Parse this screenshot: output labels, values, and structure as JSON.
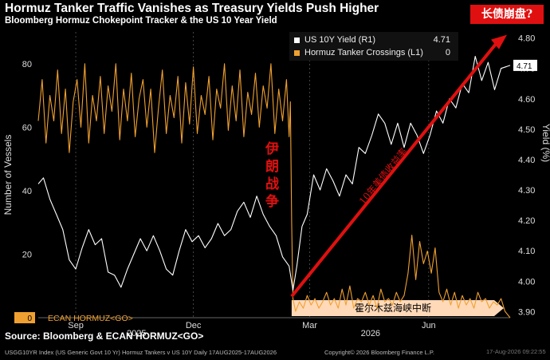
{
  "header": {
    "title": "Hormuz Tanker Traffic Vanishes as Treasury Yields Push Higher",
    "subtitle": "Bloomberg Hormuz Chokepoint Tracker & the US 10 Year Yield",
    "badge": "长债崩盘?"
  },
  "legend": {
    "items": [
      {
        "label": "US 10Y Yield (R1)",
        "value": "4.71"
      },
      {
        "label": "Hormuz Tanker Crossings (L1)",
        "value": "0"
      }
    ]
  },
  "annotations": {
    "war": [
      "伊",
      "朗",
      "战",
      "争"
    ],
    "arrow_text": "10年美债收益率",
    "strait_text": "霍尔木兹海峡中断",
    "ecan": "ECAN HORMUZ<GO>",
    "left_last": "0",
    "right_last": "4.71"
  },
  "footer": {
    "source": "Source: Bloomberg & ECAN HORMUZ<GO>",
    "small": "USGG10YR Index (US Generic Govt 10 Yr) Hormuz Tankers v US 10Y Daily 17AUG2025-17AUG2026",
    "copyright": "Copyright© 2026 Bloomberg Finance L.P.",
    "stamp": "17-Aug-2026 09:22:55"
  },
  "colors": {
    "yield": "#ffffff",
    "tankers": "#f0a030",
    "annotation_red": "#e01010",
    "strait_band": "#ffd9b8",
    "badge_bg": "#e01010"
  },
  "chart_data": {
    "type": "line",
    "x_range": [
      "2025-08-17",
      "2026-08-17"
    ],
    "x_tick_labels": [
      {
        "label": "Sep",
        "date": "2025-09-15"
      },
      {
        "label": "Dec",
        "date": "2025-12-15"
      },
      {
        "label": "Mar",
        "date": "2026-03-15"
      },
      {
        "label": "Jun",
        "date": "2026-06-15"
      }
    ],
    "year_labels": [
      {
        "label": "2025",
        "date": "2025-11-01"
      },
      {
        "label": "2026",
        "date": "2026-05-01"
      }
    ],
    "left_axis": {
      "label": "Number of Vessels",
      "range": [
        0,
        90
      ],
      "ticks": [
        0,
        20,
        40,
        60,
        80
      ]
    },
    "right_axis": {
      "label": "Yield (%)",
      "range": [
        3.88,
        4.82
      ],
      "ticks": [
        3.9,
        4.0,
        4.1,
        4.2,
        4.3,
        4.4,
        4.5,
        4.6,
        4.7,
        4.8
      ]
    },
    "legend_position": "top-right",
    "grid": "vertical dashed",
    "series": [
      {
        "name": "Hormuz Tanker Crossings (L1)",
        "axis": "left",
        "color": "#f0a030",
        "points": [
          [
            "2025-08-17",
            62
          ],
          [
            "2025-08-20",
            75
          ],
          [
            "2025-08-23",
            55
          ],
          [
            "2025-08-26",
            70
          ],
          [
            "2025-08-29",
            62
          ],
          [
            "2025-09-01",
            78
          ],
          [
            "2025-09-04",
            58
          ],
          [
            "2025-09-07",
            72
          ],
          [
            "2025-09-10",
            52
          ],
          [
            "2025-09-13",
            68
          ],
          [
            "2025-09-16",
            75
          ],
          [
            "2025-09-19",
            60
          ],
          [
            "2025-09-22",
            80
          ],
          [
            "2025-09-25",
            55
          ],
          [
            "2025-09-28",
            70
          ],
          [
            "2025-10-01",
            62
          ],
          [
            "2025-10-04",
            76
          ],
          [
            "2025-10-07",
            58
          ],
          [
            "2025-10-10",
            73
          ],
          [
            "2025-10-13",
            65
          ],
          [
            "2025-10-16",
            80
          ],
          [
            "2025-10-19",
            56
          ],
          [
            "2025-10-22",
            72
          ],
          [
            "2025-10-25",
            62
          ],
          [
            "2025-10-28",
            77
          ],
          [
            "2025-10-31",
            57
          ],
          [
            "2025-11-03",
            69
          ],
          [
            "2025-11-06",
            75
          ],
          [
            "2025-11-09",
            60
          ],
          [
            "2025-11-12",
            72
          ],
          [
            "2025-11-15",
            52
          ],
          [
            "2025-11-18",
            66
          ],
          [
            "2025-11-21",
            78
          ],
          [
            "2025-11-24",
            58
          ],
          [
            "2025-11-27",
            70
          ],
          [
            "2025-11-30",
            63
          ],
          [
            "2025-12-03",
            76
          ],
          [
            "2025-12-06",
            55
          ],
          [
            "2025-12-09",
            74
          ],
          [
            "2025-12-12",
            61
          ],
          [
            "2025-12-15",
            79
          ],
          [
            "2025-12-18",
            58
          ],
          [
            "2025-12-21",
            70
          ],
          [
            "2025-12-24",
            64
          ],
          [
            "2025-12-27",
            76
          ],
          [
            "2025-12-30",
            56
          ],
          [
            "2026-01-02",
            72
          ],
          [
            "2026-01-05",
            66
          ],
          [
            "2026-01-08",
            80
          ],
          [
            "2026-01-11",
            59
          ],
          [
            "2026-01-14",
            73
          ],
          [
            "2026-01-17",
            62
          ],
          [
            "2026-01-20",
            78
          ],
          [
            "2026-01-23",
            57
          ],
          [
            "2026-01-26",
            71
          ],
          [
            "2026-01-29",
            64
          ],
          [
            "2026-02-01",
            77
          ],
          [
            "2026-02-04",
            60
          ],
          [
            "2026-02-07",
            73
          ],
          [
            "2026-02-10",
            66
          ],
          [
            "2026-02-13",
            80
          ],
          [
            "2026-02-16",
            58
          ],
          [
            "2026-02-19",
            72
          ],
          [
            "2026-02-22",
            62
          ],
          [
            "2026-02-25",
            75
          ],
          [
            "2026-02-27",
            57
          ],
          [
            "2026-02-28",
            68
          ],
          [
            "2026-03-01",
            30
          ],
          [
            "2026-03-02",
            6
          ],
          [
            "2026-03-04",
            2
          ],
          [
            "2026-03-07",
            5
          ],
          [
            "2026-03-10",
            3
          ],
          [
            "2026-03-13",
            7
          ],
          [
            "2026-03-16",
            4
          ],
          [
            "2026-03-19",
            6
          ],
          [
            "2026-03-22",
            3
          ],
          [
            "2026-03-25",
            5
          ],
          [
            "2026-03-28",
            8
          ],
          [
            "2026-03-31",
            4
          ],
          [
            "2026-04-03",
            6
          ],
          [
            "2026-04-06",
            3
          ],
          [
            "2026-04-09",
            9
          ],
          [
            "2026-04-12",
            4
          ],
          [
            "2026-04-15",
            10
          ],
          [
            "2026-04-18",
            3
          ],
          [
            "2026-04-21",
            6
          ],
          [
            "2026-04-24",
            5
          ],
          [
            "2026-04-27",
            8
          ],
          [
            "2026-04-30",
            4
          ],
          [
            "2026-05-03",
            7
          ],
          [
            "2026-05-06",
            3
          ],
          [
            "2026-05-09",
            9
          ],
          [
            "2026-05-12",
            5
          ],
          [
            "2026-05-15",
            6
          ],
          [
            "2026-05-18",
            4
          ],
          [
            "2026-05-21",
            8
          ],
          [
            "2026-05-24",
            5
          ],
          [
            "2026-05-27",
            7
          ],
          [
            "2026-05-30",
            14
          ],
          [
            "2026-06-02",
            26
          ],
          [
            "2026-06-05",
            12
          ],
          [
            "2026-06-08",
            24
          ],
          [
            "2026-06-11",
            17
          ],
          [
            "2026-06-14",
            21
          ],
          [
            "2026-06-17",
            14
          ],
          [
            "2026-06-20",
            22
          ],
          [
            "2026-06-23",
            8
          ],
          [
            "2026-06-26",
            5
          ],
          [
            "2026-06-29",
            9
          ],
          [
            "2026-07-02",
            4
          ],
          [
            "2026-07-05",
            8
          ],
          [
            "2026-07-08",
            3
          ],
          [
            "2026-07-11",
            7
          ],
          [
            "2026-07-14",
            4
          ],
          [
            "2026-07-17",
            6
          ],
          [
            "2026-07-20",
            3
          ],
          [
            "2026-07-23",
            8
          ],
          [
            "2026-07-26",
            5
          ],
          [
            "2026-07-29",
            6
          ],
          [
            "2026-08-01",
            3
          ],
          [
            "2026-08-04",
            5
          ],
          [
            "2026-08-07",
            4
          ],
          [
            "2026-08-10",
            6
          ],
          [
            "2026-08-13",
            2
          ],
          [
            "2026-08-17",
            0
          ]
        ]
      },
      {
        "name": "US 10Y Yield (R1)",
        "axis": "right",
        "color": "#ffffff",
        "points": [
          [
            "2025-08-17",
            4.32
          ],
          [
            "2025-08-21",
            4.34
          ],
          [
            "2025-08-26",
            4.27
          ],
          [
            "2025-08-31",
            4.22
          ],
          [
            "2025-09-05",
            4.17
          ],
          [
            "2025-09-10",
            4.07
          ],
          [
            "2025-09-15",
            4.04
          ],
          [
            "2025-09-20",
            4.11
          ],
          [
            "2025-09-25",
            4.17
          ],
          [
            "2025-09-30",
            4.12
          ],
          [
            "2025-10-05",
            4.14
          ],
          [
            "2025-10-10",
            4.03
          ],
          [
            "2025-10-15",
            4.02
          ],
          [
            "2025-10-20",
            3.98
          ],
          [
            "2025-10-25",
            4.04
          ],
          [
            "2025-10-30",
            4.09
          ],
          [
            "2025-11-04",
            4.14
          ],
          [
            "2025-11-09",
            4.1
          ],
          [
            "2025-11-14",
            4.15
          ],
          [
            "2025-11-19",
            4.1
          ],
          [
            "2025-11-24",
            4.04
          ],
          [
            "2025-11-29",
            4.02
          ],
          [
            "2025-12-04",
            4.1
          ],
          [
            "2025-12-09",
            4.17
          ],
          [
            "2025-12-14",
            4.13
          ],
          [
            "2025-12-19",
            4.15
          ],
          [
            "2025-12-24",
            4.11
          ],
          [
            "2025-12-29",
            4.14
          ],
          [
            "2026-01-03",
            4.19
          ],
          [
            "2026-01-08",
            4.15
          ],
          [
            "2026-01-13",
            4.17
          ],
          [
            "2026-01-18",
            4.23
          ],
          [
            "2026-01-23",
            4.26
          ],
          [
            "2026-01-28",
            4.21
          ],
          [
            "2026-02-02",
            4.28
          ],
          [
            "2026-02-07",
            4.22
          ],
          [
            "2026-02-12",
            4.18
          ],
          [
            "2026-02-17",
            4.15
          ],
          [
            "2026-02-22",
            4.08
          ],
          [
            "2026-02-27",
            4.05
          ],
          [
            "2026-03-02",
            3.97
          ],
          [
            "2026-03-05",
            4.05
          ],
          [
            "2026-03-09",
            4.18
          ],
          [
            "2026-03-13",
            4.22
          ],
          [
            "2026-03-18",
            4.35
          ],
          [
            "2026-03-23",
            4.3
          ],
          [
            "2026-03-28",
            4.37
          ],
          [
            "2026-04-02",
            4.33
          ],
          [
            "2026-04-07",
            4.28
          ],
          [
            "2026-04-12",
            4.35
          ],
          [
            "2026-04-17",
            4.32
          ],
          [
            "2026-04-22",
            4.44
          ],
          [
            "2026-04-27",
            4.42
          ],
          [
            "2026-05-02",
            4.48
          ],
          [
            "2026-05-07",
            4.55
          ],
          [
            "2026-05-12",
            4.52
          ],
          [
            "2026-05-17",
            4.45
          ],
          [
            "2026-05-22",
            4.52
          ],
          [
            "2026-05-27",
            4.44
          ],
          [
            "2026-06-01",
            4.52
          ],
          [
            "2026-06-06",
            4.48
          ],
          [
            "2026-06-11",
            4.42
          ],
          [
            "2026-06-16",
            4.48
          ],
          [
            "2026-06-21",
            4.56
          ],
          [
            "2026-06-26",
            4.52
          ],
          [
            "2026-07-01",
            4.6
          ],
          [
            "2026-07-06",
            4.57
          ],
          [
            "2026-07-11",
            4.65
          ],
          [
            "2026-07-16",
            4.62
          ],
          [
            "2026-07-21",
            4.74
          ],
          [
            "2026-07-26",
            4.66
          ],
          [
            "2026-07-31",
            4.72
          ],
          [
            "2026-08-05",
            4.63
          ],
          [
            "2026-08-10",
            4.7
          ],
          [
            "2026-08-17",
            4.71
          ]
        ]
      }
    ]
  }
}
